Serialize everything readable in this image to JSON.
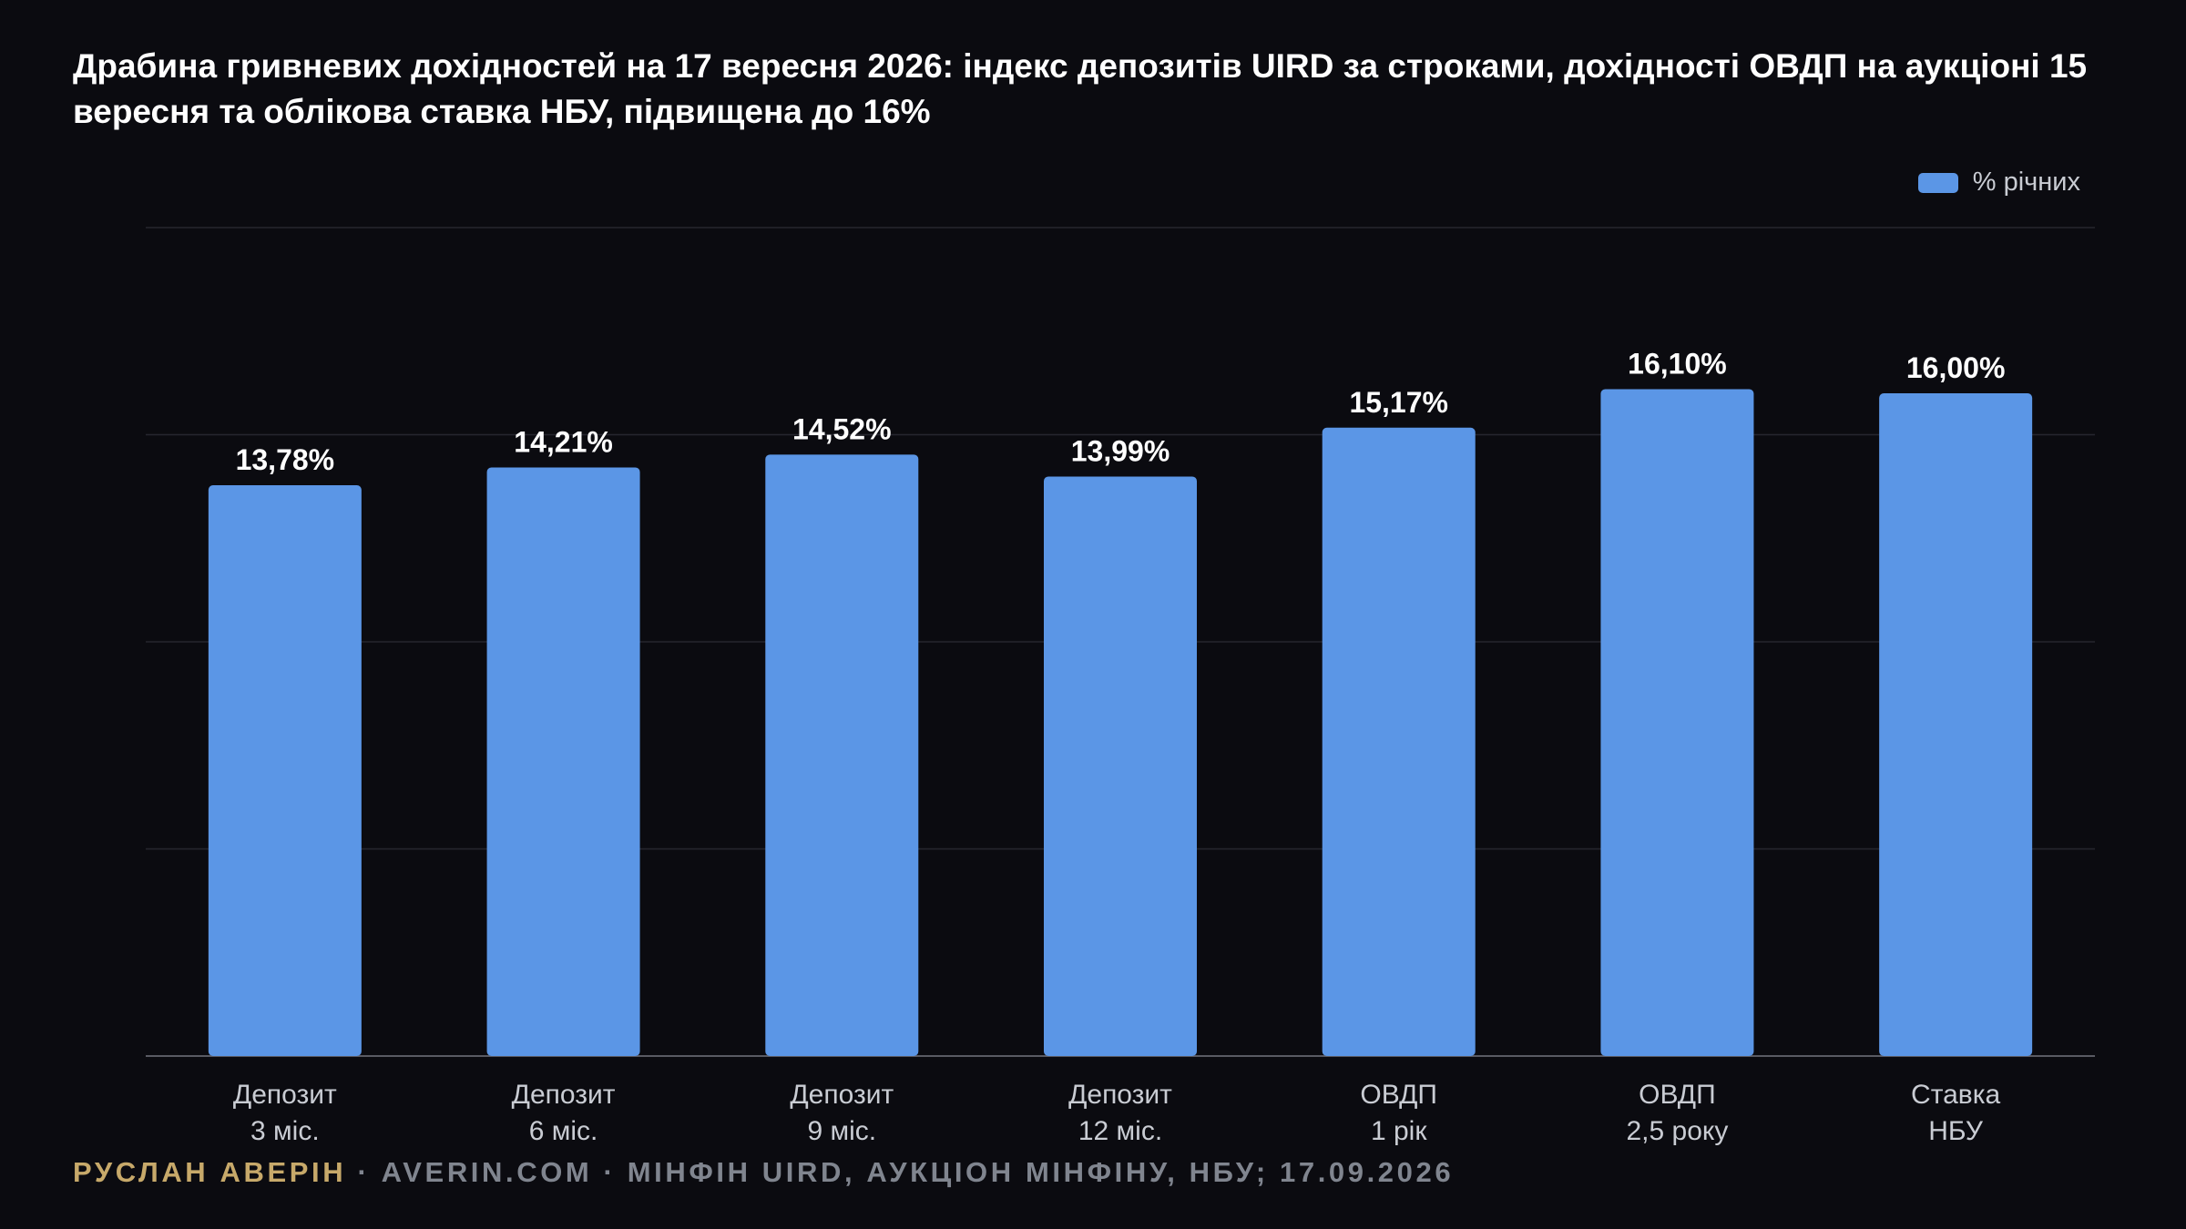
{
  "title": "Драбина гривневих дохідностей на 17 вересня 2026: індекс депозитів UIRD за строками, дохідності ОВДП на аукціоні 15 вересня та облікова ставка НБУ, підвищена до 16%",
  "legend": {
    "label": "% річних"
  },
  "colors": {
    "background": "#0b0b10",
    "bar": "#5b96e6",
    "grid": "#26262e",
    "axis": "#595a63",
    "tick_text": "#c9ccd3",
    "author": "#c7a96a",
    "source": "#80858f"
  },
  "chart_data": {
    "type": "bar",
    "categories": [
      [
        "Депозит",
        "3 міс."
      ],
      [
        "Депозит",
        "6 міс."
      ],
      [
        "Депозит",
        "9 міс."
      ],
      [
        "Депозит",
        "12 міс."
      ],
      [
        "ОВДП",
        "1 рік"
      ],
      [
        "ОВДП",
        "2,5 року"
      ],
      [
        "Ставка",
        "НБУ"
      ]
    ],
    "values": [
      13.78,
      14.21,
      14.52,
      13.99,
      15.17,
      16.1,
      16.0
    ],
    "value_labels": [
      "13,78%",
      "14,21%",
      "14,52%",
      "13,99%",
      "15,17%",
      "16,10%",
      "16,00%"
    ],
    "series": [
      {
        "name": "% річних",
        "values": [
          13.78,
          14.21,
          14.52,
          13.99,
          15.17,
          16.1,
          16.0
        ]
      }
    ],
    "ylim": [
      0,
      20
    ],
    "grid": true,
    "legend_position": "top-right",
    "xlabel": "",
    "ylabel": ""
  },
  "footer": {
    "author": "РУСЛАН АВЕРІН",
    "rest": " · AVERIN.COM · МІНФІН UIRD, АУКЦІОН МІНФІНУ, НБУ; 17.09.2026"
  }
}
